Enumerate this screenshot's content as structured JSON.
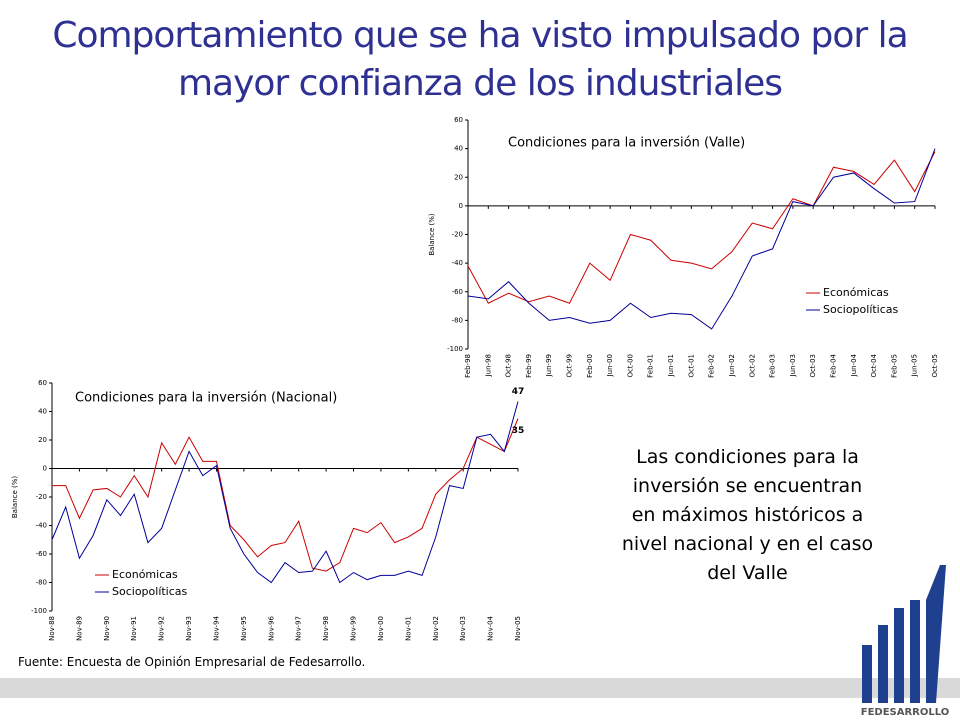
{
  "title": "Comportamiento que se ha visto impulsado por la mayor confianza de los industriales",
  "note": "Las condiciones para la inversión se encuentran en máximos históricos a nivel nacional y en el caso del Valle",
  "source": "Fuente: Encuesta de Opinión Empresarial de Fedesarrollo.",
  "logo": "FEDESARROLLO",
  "chart_data": [
    {
      "type": "line",
      "title": "Condiciones para la inversión (Valle)",
      "y_label": "Balance (%)",
      "categories": [
        "Feb-98",
        "Jun-98",
        "Oct-98",
        "Feb-99",
        "Jun-99",
        "Oct-99",
        "Feb-00",
        "Jun-00",
        "Oct-00",
        "Feb-01",
        "Jun-01",
        "Oct-01",
        "Feb-02",
        "Jun-02",
        "Oct-02",
        "Feb-03",
        "Jun-03",
        "Oct-03",
        "Feb-04",
        "Jun-04",
        "Oct-04",
        "Feb-05",
        "Jun-05",
        "Oct-05"
      ],
      "series": [
        {
          "name": "Económicas",
          "color": "#cc0000",
          "values": [
            -42,
            -68,
            -61,
            -67,
            -63,
            -68,
            -40,
            -52,
            -20,
            -24,
            -38,
            -40,
            -44,
            -32,
            -12,
            -16,
            5,
            0,
            27,
            24,
            15,
            32,
            10,
            38
          ]
        },
        {
          "name": "Sociopolíticas",
          "color": "#000099",
          "values": [
            -63,
            -65,
            -53,
            -68,
            -80,
            -78,
            -82,
            -80,
            -68,
            -78,
            -75,
            -76,
            -86,
            -63,
            -35,
            -30,
            3,
            0,
            20,
            23,
            12,
            2,
            3,
            40
          ]
        }
      ],
      "ylim": [
        -100,
        60
      ],
      "yticks": [
        -100,
        -80,
        -60,
        -40,
        -20,
        0,
        20,
        40,
        60
      ],
      "legend": "lower right"
    },
    {
      "type": "line",
      "title": "Condiciones para la inversión (Nacional)",
      "y_label": "Balance (%)",
      "categories": [
        "Nov-88",
        null,
        "Nov-89",
        null,
        "Nov-90",
        null,
        "Nov-91",
        null,
        "Nov-92",
        null,
        "Nov-93",
        null,
        "Nov-94",
        null,
        "Nov-95",
        null,
        "Nov-96",
        null,
        "Nov-97",
        null,
        "Nov-98",
        null,
        "Nov-99",
        null,
        "Nov-00",
        null,
        "Nov-01",
        null,
        "Nov-02",
        null,
        "Nov-03",
        null,
        "Nov-04",
        null,
        "Nov-05"
      ],
      "series": [
        {
          "name": "Económicas",
          "color": "#cc0000",
          "values": [
            -12,
            -12,
            -35,
            -15,
            -14,
            -20,
            -5,
            -20,
            18,
            3,
            22,
            5,
            5,
            -40,
            -50,
            -62,
            -54,
            -52,
            -37,
            -70,
            -72,
            -66,
            -42,
            -45,
            -38,
            -52,
            -48,
            -42,
            -18,
            -8,
            0,
            22,
            17,
            12,
            35
          ]
        },
        {
          "name": "Sociopolíticas",
          "color": "#000099",
          "values": [
            -50,
            -27,
            -63,
            -47,
            -22,
            -33,
            -18,
            -52,
            -42,
            -15,
            12,
            -5,
            2,
            -42,
            -60,
            -73,
            -80,
            -66,
            -73,
            -72,
            -58,
            -80,
            -73,
            -78,
            -75,
            -75,
            -72,
            -75,
            -48,
            -12,
            -14,
            22,
            24,
            12,
            47
          ]
        }
      ],
      "ylim": [
        -100,
        60
      ],
      "yticks": [
        -100,
        -80,
        -60,
        -40,
        -20,
        0,
        20,
        40,
        60
      ],
      "legend": "lower left"
    }
  ]
}
